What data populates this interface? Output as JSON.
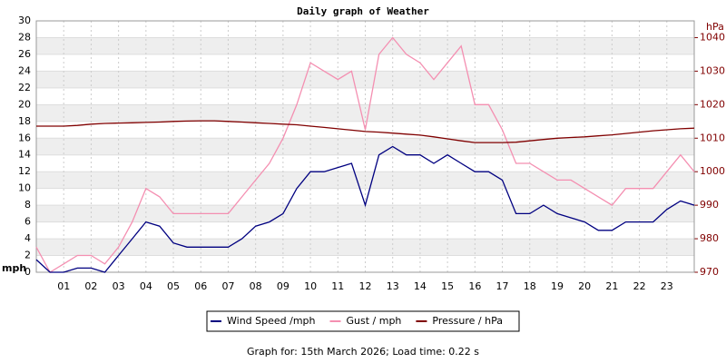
{
  "chart_data": {
    "type": "line",
    "title": "Daily graph of Weather",
    "y_label": "mph",
    "y2_label": "hPa",
    "caption": "Graph for: 15th March 2026; Load time: 0.22 s",
    "x": [
      0,
      0.5,
      1,
      1.5,
      2,
      2.5,
      3,
      3.5,
      4,
      4.5,
      5,
      5.5,
      6,
      6.5,
      7,
      7.5,
      8,
      8.5,
      9,
      9.5,
      10,
      10.5,
      11,
      11.5,
      12,
      12.5,
      13,
      13.5,
      14,
      14.5,
      15,
      15.5,
      16,
      16.5,
      17,
      17.5,
      18,
      18.5,
      19,
      19.5,
      20,
      20.5,
      21,
      21.5,
      22,
      22.5,
      23,
      23.5,
      24
    ],
    "xlim": [
      0,
      24
    ],
    "xticks": [
      {
        "value": 1,
        "label": "01"
      },
      {
        "value": 2,
        "label": "02"
      },
      {
        "value": 3,
        "label": "03"
      },
      {
        "value": 4,
        "label": "04"
      },
      {
        "value": 5,
        "label": "05"
      },
      {
        "value": 6,
        "label": "06"
      },
      {
        "value": 7,
        "label": "07"
      },
      {
        "value": 8,
        "label": "08"
      },
      {
        "value": 9,
        "label": "09"
      },
      10,
      11,
      12,
      13,
      14,
      15,
      16,
      17,
      18,
      19,
      20,
      21,
      22,
      23
    ],
    "ylim": [
      0,
      30
    ],
    "yticks": [
      0,
      2,
      4,
      6,
      8,
      10,
      12,
      14,
      16,
      18,
      20,
      22,
      24,
      26,
      28,
      30
    ],
    "y2lim": [
      970,
      1045
    ],
    "y2ticks": [
      970,
      980,
      990,
      1000,
      1010,
      1020,
      1030,
      1040
    ],
    "grid": true,
    "series": [
      {
        "name": "Wind Speed /mph",
        "color": "#000080",
        "values": [
          1.5,
          0,
          0,
          0.5,
          0.5,
          0,
          2,
          4,
          6,
          5.5,
          3.5,
          3,
          3,
          3,
          3,
          4,
          5.5,
          6,
          7,
          10,
          12,
          12,
          12.5,
          13,
          8,
          14,
          15,
          14,
          14,
          13,
          14,
          13,
          12,
          12,
          11,
          7,
          7,
          8,
          7,
          6.5,
          6,
          5,
          5,
          6,
          6,
          6,
          7.5,
          8.5,
          8
        ]
      },
      {
        "name": "Gust / mph",
        "color": "#f48fb1",
        "values": [
          3,
          0,
          1,
          2,
          2,
          1,
          3,
          6,
          10,
          9,
          7,
          7,
          7,
          7,
          7,
          9,
          11,
          13,
          16,
          20,
          25,
          24,
          23,
          24,
          17,
          26,
          28,
          26,
          25,
          23,
          25,
          27,
          20,
          20,
          17,
          13,
          13,
          12,
          11,
          11,
          10,
          9,
          8,
          10,
          10,
          10,
          12,
          14,
          12
        ]
      },
      {
        "name": "Pressure / hPa",
        "color": "#800000",
        "axis": "y2",
        "values": [
          1013.6,
          1013.6,
          1013.6,
          1013.8,
          1014.2,
          1014.4,
          1014.5,
          1014.6,
          1014.7,
          1014.8,
          1015,
          1015.1,
          1015.2,
          1015.2,
          1015,
          1014.8,
          1014.6,
          1014.4,
          1014.2,
          1014,
          1013.6,
          1013.2,
          1012.8,
          1012.4,
          1012,
          1011.8,
          1011.5,
          1011.2,
          1010.9,
          1010.4,
          1009.8,
          1009.2,
          1008.7,
          1008.7,
          1008.7,
          1008.8,
          1009.2,
          1009.6,
          1010,
          1010.2,
          1010.4,
          1010.7,
          1011,
          1011.4,
          1011.8,
          1012.2,
          1012.5,
          1012.8,
          1013
        ]
      }
    ]
  }
}
